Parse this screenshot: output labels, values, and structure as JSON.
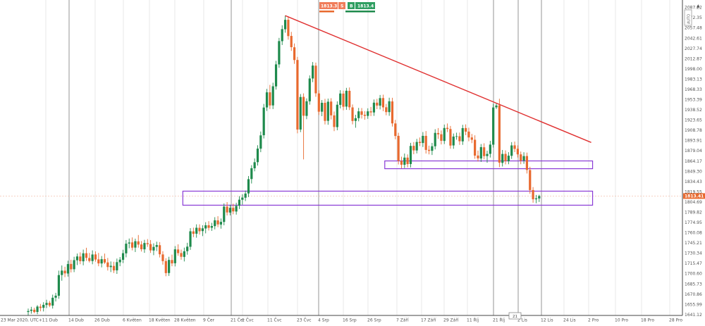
{
  "trade_panel": {
    "sell_price": "1813.3",
    "sell_label": "S",
    "buy_label": "B",
    "buy_price": "1813.4"
  },
  "current_price_tag": "1813.41",
  "nav_arrow": "▲",
  "scroll_marker": "21",
  "zoom_label": "AUTO",
  "colors": {
    "up": "#1e8a4c",
    "down": "#e8692e",
    "trendline": "#e03131",
    "zone": "#8a3ad6",
    "grid": "#d8d8d8",
    "separator": "#7a7a7a",
    "price_tag_bg": "#e8692e",
    "sell_bg": "#f07c5a",
    "buy_bg": "#2f9e61"
  },
  "chart_data": {
    "type": "candlestick",
    "symbol": "",
    "y_ticks": [
      "2087.22",
      "2072.35",
      "2057.48",
      "2042.61",
      "2027.74",
      "2012.87",
      "1998.00",
      "1983.13",
      "1968.33",
      "1953.39",
      "1938.52",
      "1923.65",
      "1908.78",
      "1893.91",
      "1879.04",
      "1864.17",
      "1849.30",
      "1834.43",
      "1819.55",
      "1804.69",
      "1789.82",
      "1774.95",
      "1760.08",
      "1745.21",
      "1730.34",
      "1715.47",
      "1700.60",
      "1685.73",
      "1670.86",
      "1655.99",
      "1641.12"
    ],
    "ylim": [
      1640,
      2094
    ],
    "x_ticks": [
      "23 Mar 2020, UTC+1",
      "1 Dub",
      "14 Dub",
      "26 Dub",
      "6 Květen",
      "18 Květen",
      "28 Květen",
      "9 Čer",
      "21 Čer",
      "1 Čvc",
      "11 Čvc",
      "23 Čvc",
      "4 Srp",
      "16 Srp",
      "26 Srp",
      "7 Září",
      "17 Září",
      "29 Září",
      "11 Říj",
      "21 Říj",
      "2 Lis",
      "12 Lis",
      "24 Lis",
      "2 Pro",
      "10 Pro",
      "18 Pro",
      "28 Pro"
    ],
    "candles": [
      {
        "o": 1645.0,
        "h": 1650.0,
        "l": 1640.0,
        "c": 1646.4
      },
      {
        "o": 1646.6,
        "h": 1652.5,
        "l": 1642.5,
        "c": 1648.4
      },
      {
        "o": 1648.3,
        "h": 1651.2,
        "l": 1643.2,
        "c": 1645.0
      },
      {
        "o": 1645.1,
        "h": 1655.0,
        "l": 1641.8,
        "c": 1652.9
      },
      {
        "o": 1652.8,
        "h": 1656.7,
        "l": 1646.0,
        "c": 1650.9
      },
      {
        "o": 1651.1,
        "h": 1659.2,
        "l": 1645.8,
        "c": 1655.4
      },
      {
        "o": 1655.2,
        "h": 1662.7,
        "l": 1650.8,
        "c": 1658.2
      },
      {
        "o": 1658.4,
        "h": 1661.1,
        "l": 1652.1,
        "c": 1654.5
      },
      {
        "o": 1654.3,
        "h": 1670.2,
        "l": 1650.0,
        "c": 1665.7
      },
      {
        "o": 1665.8,
        "h": 1672.8,
        "l": 1660.3,
        "c": 1668.7
      },
      {
        "o": 1668.6,
        "h": 1705.1,
        "l": 1664.2,
        "c": 1698.6
      },
      {
        "o": 1698.7,
        "h": 1712.6,
        "l": 1690.4,
        "c": 1705.1
      },
      {
        "o": 1705.0,
        "h": 1710.7,
        "l": 1695.6,
        "c": 1701.1
      },
      {
        "o": 1700.9,
        "h": 1719.5,
        "l": 1696.4,
        "c": 1714.6
      },
      {
        "o": 1714.8,
        "h": 1720.9,
        "l": 1702.4,
        "c": 1707.0
      },
      {
        "o": 1707.1,
        "h": 1725.2,
        "l": 1702.9,
        "c": 1720.3
      },
      {
        "o": 1720.1,
        "h": 1729.9,
        "l": 1713.1,
        "c": 1725.7
      },
      {
        "o": 1725.6,
        "h": 1731.6,
        "l": 1714.4,
        "c": 1718.8
      },
      {
        "o": 1718.6,
        "h": 1735.6,
        "l": 1712.8,
        "c": 1730.2
      },
      {
        "o": 1730.4,
        "h": 1738.3,
        "l": 1719.3,
        "c": 1723.6
      },
      {
        "o": 1723.4,
        "h": 1730.8,
        "l": 1716.9,
        "c": 1719.1
      },
      {
        "o": 1719.0,
        "h": 1734.5,
        "l": 1714.3,
        "c": 1728.5
      },
      {
        "o": 1728.6,
        "h": 1733.1,
        "l": 1718.1,
        "c": 1721.2
      },
      {
        "o": 1721.4,
        "h": 1730.8,
        "l": 1711.4,
        "c": 1715.6
      },
      {
        "o": 1715.5,
        "h": 1726.3,
        "l": 1709.8,
        "c": 1721.7
      },
      {
        "o": 1721.8,
        "h": 1729.8,
        "l": 1714.8,
        "c": 1716.8
      },
      {
        "o": 1717.0,
        "h": 1723.5,
        "l": 1705.2,
        "c": 1710.3
      },
      {
        "o": 1710.2,
        "h": 1718.4,
        "l": 1703.0,
        "c": 1712.1
      },
      {
        "o": 1711.9,
        "h": 1718.0,
        "l": 1701.6,
        "c": 1705.4
      },
      {
        "o": 1705.5,
        "h": 1722.6,
        "l": 1700.3,
        "c": 1717.4
      },
      {
        "o": 1717.2,
        "h": 1724.8,
        "l": 1711.5,
        "c": 1721.0
      },
      {
        "o": 1720.8,
        "h": 1735.4,
        "l": 1716.0,
        "c": 1730.4
      },
      {
        "o": 1730.2,
        "h": 1749.5,
        "l": 1724.4,
        "c": 1744.2
      },
      {
        "o": 1744.4,
        "h": 1751.7,
        "l": 1737.6,
        "c": 1745.9
      },
      {
        "o": 1746.1,
        "h": 1753.3,
        "l": 1734.5,
        "c": 1738.4
      },
      {
        "o": 1738.5,
        "h": 1751.5,
        "l": 1732.1,
        "c": 1747.8
      },
      {
        "o": 1747.6,
        "h": 1756.8,
        "l": 1738.4,
        "c": 1742.9
      },
      {
        "o": 1743.1,
        "h": 1748.0,
        "l": 1732.8,
        "c": 1736.1
      },
      {
        "o": 1736.0,
        "h": 1749.8,
        "l": 1730.9,
        "c": 1745.2
      },
      {
        "o": 1745.0,
        "h": 1750.9,
        "l": 1739.6,
        "c": 1743.5
      },
      {
        "o": 1743.6,
        "h": 1749.5,
        "l": 1730.8,
        "c": 1734.5
      },
      {
        "o": 1734.3,
        "h": 1744.7,
        "l": 1727.5,
        "c": 1739.5
      },
      {
        "o": 1739.6,
        "h": 1747.1,
        "l": 1733.5,
        "c": 1742.2
      },
      {
        "o": 1742.0,
        "h": 1746.5,
        "l": 1724.2,
        "c": 1728.8
      },
      {
        "o": 1728.6,
        "h": 1733.3,
        "l": 1713.7,
        "c": 1718.9
      },
      {
        "o": 1719.0,
        "h": 1723.1,
        "l": 1696.9,
        "c": 1701.5
      },
      {
        "o": 1701.6,
        "h": 1725.2,
        "l": 1697.4,
        "c": 1720.6
      },
      {
        "o": 1720.5,
        "h": 1728.3,
        "l": 1711.4,
        "c": 1715.6
      },
      {
        "o": 1715.8,
        "h": 1740.7,
        "l": 1711.2,
        "c": 1736.0
      },
      {
        "o": 1735.8,
        "h": 1743.3,
        "l": 1726.6,
        "c": 1730.5
      },
      {
        "o": 1730.6,
        "h": 1735.6,
        "l": 1720.9,
        "c": 1725.2
      },
      {
        "o": 1725.0,
        "h": 1738.5,
        "l": 1718.4,
        "c": 1733.2
      },
      {
        "o": 1733.4,
        "h": 1745.5,
        "l": 1728.2,
        "c": 1739.9
      },
      {
        "o": 1739.7,
        "h": 1766.8,
        "l": 1735.2,
        "c": 1762.2
      },
      {
        "o": 1762.1,
        "h": 1767.5,
        "l": 1753.7,
        "c": 1758.5
      },
      {
        "o": 1758.7,
        "h": 1772.3,
        "l": 1752.9,
        "c": 1767.3
      },
      {
        "o": 1767.2,
        "h": 1772.3,
        "l": 1757.5,
        "c": 1762.3
      },
      {
        "o": 1762.5,
        "h": 1771.0,
        "l": 1755.2,
        "c": 1766.5
      },
      {
        "o": 1766.3,
        "h": 1775.4,
        "l": 1759.2,
        "c": 1770.9
      },
      {
        "o": 1771.0,
        "h": 1776.9,
        "l": 1763.3,
        "c": 1767.2
      },
      {
        "o": 1767.4,
        "h": 1774.5,
        "l": 1762.8,
        "c": 1769.8
      },
      {
        "o": 1769.7,
        "h": 1782.7,
        "l": 1765.0,
        "c": 1778.2
      },
      {
        "o": 1778.0,
        "h": 1784.1,
        "l": 1768.2,
        "c": 1772.2
      },
      {
        "o": 1772.0,
        "h": 1780.8,
        "l": 1766.0,
        "c": 1775.9
      },
      {
        "o": 1775.8,
        "h": 1802.7,
        "l": 1770.9,
        "c": 1798.1
      },
      {
        "o": 1798.1,
        "h": 1804.6,
        "l": 1785.2,
        "c": 1789.6
      },
      {
        "o": 1789.4,
        "h": 1800.8,
        "l": 1785.3,
        "c": 1796.3
      },
      {
        "o": 1796.2,
        "h": 1802.3,
        "l": 1786.9,
        "c": 1791.1
      },
      {
        "o": 1790.9,
        "h": 1803.7,
        "l": 1786.4,
        "c": 1799.1
      },
      {
        "o": 1799.3,
        "h": 1813.2,
        "l": 1794.5,
        "c": 1808.1
      },
      {
        "o": 1808.0,
        "h": 1816.0,
        "l": 1800.8,
        "c": 1811.2
      },
      {
        "o": 1811.0,
        "h": 1821.4,
        "l": 1806.1,
        "c": 1817.0
      },
      {
        "o": 1817.2,
        "h": 1842.5,
        "l": 1811.9,
        "c": 1837.9
      },
      {
        "o": 1838.1,
        "h": 1858.2,
        "l": 1831.6,
        "c": 1853.8
      },
      {
        "o": 1853.7,
        "h": 1868.0,
        "l": 1849.3,
        "c": 1862.5
      },
      {
        "o": 1862.6,
        "h": 1887.2,
        "l": 1857.7,
        "c": 1882.3
      },
      {
        "o": 1882.2,
        "h": 1907.1,
        "l": 1877.1,
        "c": 1901.5
      },
      {
        "o": 1901.7,
        "h": 1947.2,
        "l": 1897.0,
        "c": 1941.9
      },
      {
        "o": 1942.1,
        "h": 1969.0,
        "l": 1936.9,
        "c": 1964.0
      },
      {
        "o": 1964.0,
        "h": 1974.8,
        "l": 1939.8,
        "c": 1945.0
      },
      {
        "o": 1945.0,
        "h": 1978.0,
        "l": 1939.7,
        "c": 1972.8
      },
      {
        "o": 1972.6,
        "h": 2009.8,
        "l": 1968.0,
        "c": 2004.6
      },
      {
        "o": 2004.6,
        "h": 2043.1,
        "l": 1999.6,
        "c": 2038.4
      },
      {
        "o": 2038.3,
        "h": 2061.4,
        "l": 2032.7,
        "c": 2055.8
      },
      {
        "o": 2055.6,
        "h": 2075.5,
        "l": 2050.6,
        "c": 2069.3
      },
      {
        "o": 2069.4,
        "h": 2074.3,
        "l": 2040.5,
        "c": 2045.7
      },
      {
        "o": 2045.9,
        "h": 2051.8,
        "l": 2024.2,
        "c": 2029.6
      },
      {
        "o": 2029.4,
        "h": 2035.0,
        "l": 2005.4,
        "c": 2010.9
      },
      {
        "o": 2011.0,
        "h": 2015.5,
        "l": 1904.5,
        "c": 1910.0
      },
      {
        "o": 1910.0,
        "h": 1961.5,
        "l": 1906.2,
        "c": 1957.2
      },
      {
        "o": 1957.4,
        "h": 1962.5,
        "l": 1866.6,
        "c": 1930.0
      },
      {
        "o": 1929.8,
        "h": 1955.2,
        "l": 1925.0,
        "c": 1951.0
      },
      {
        "o": 1951.0,
        "h": 1988.6,
        "l": 1946.1,
        "c": 1984.1
      },
      {
        "o": 1984.1,
        "h": 2008.0,
        "l": 1978.8,
        "c": 2002.9
      },
      {
        "o": 2002.7,
        "h": 2007.2,
        "l": 1957.5,
        "c": 1962.6
      },
      {
        "o": 1962.4,
        "h": 1966.9,
        "l": 1931.1,
        "c": 1935.9
      },
      {
        "o": 1935.9,
        "h": 1952.8,
        "l": 1929.4,
        "c": 1948.8
      },
      {
        "o": 1948.8,
        "h": 1954.6,
        "l": 1917.3,
        "c": 1922.5
      },
      {
        "o": 1922.6,
        "h": 1954.9,
        "l": 1916.9,
        "c": 1950.4
      },
      {
        "o": 1950.6,
        "h": 1955.5,
        "l": 1924.6,
        "c": 1930.6
      },
      {
        "o": 1930.5,
        "h": 1936.2,
        "l": 1907.7,
        "c": 1913.7
      },
      {
        "o": 1913.5,
        "h": 1950.9,
        "l": 1908.9,
        "c": 1946.0
      },
      {
        "o": 1945.8,
        "h": 1967.1,
        "l": 1940.6,
        "c": 1962.3
      },
      {
        "o": 1962.2,
        "h": 1966.5,
        "l": 1938.0,
        "c": 1943.1
      },
      {
        "o": 1943.3,
        "h": 1970.5,
        "l": 1938.6,
        "c": 1966.3
      },
      {
        "o": 1966.2,
        "h": 1971.1,
        "l": 1938.3,
        "c": 1942.3
      },
      {
        "o": 1942.1,
        "h": 1946.4,
        "l": 1917.5,
        "c": 1922.4
      },
      {
        "o": 1922.5,
        "h": 1931.4,
        "l": 1912.6,
        "c": 1926.4
      },
      {
        "o": 1926.5,
        "h": 1941.4,
        "l": 1921.9,
        "c": 1936.4
      },
      {
        "o": 1936.4,
        "h": 1941.2,
        "l": 1925.9,
        "c": 1931.4
      },
      {
        "o": 1931.4,
        "h": 1936.7,
        "l": 1924.2,
        "c": 1929.9
      },
      {
        "o": 1929.8,
        "h": 1940.8,
        "l": 1925.5,
        "c": 1936.4
      },
      {
        "o": 1936.4,
        "h": 1942.8,
        "l": 1929.5,
        "c": 1934.9
      },
      {
        "o": 1934.8,
        "h": 1953.6,
        "l": 1929.8,
        "c": 1949.0
      },
      {
        "o": 1949.0,
        "h": 1954.5,
        "l": 1939.6,
        "c": 1944.8
      },
      {
        "o": 1944.7,
        "h": 1960.2,
        "l": 1939.2,
        "c": 1955.6
      },
      {
        "o": 1955.7,
        "h": 1960.6,
        "l": 1936.6,
        "c": 1942.2
      },
      {
        "o": 1942.3,
        "h": 1947.2,
        "l": 1930.7,
        "c": 1935.3
      },
      {
        "o": 1935.3,
        "h": 1956.2,
        "l": 1929.9,
        "c": 1951.0
      },
      {
        "o": 1950.8,
        "h": 1956.1,
        "l": 1914.3,
        "c": 1918.9
      },
      {
        "o": 1918.8,
        "h": 1924.0,
        "l": 1895.8,
        "c": 1900.6
      },
      {
        "o": 1900.8,
        "h": 1905.3,
        "l": 1859.3,
        "c": 1864.6
      },
      {
        "o": 1864.5,
        "h": 1870.6,
        "l": 1853.4,
        "c": 1858.9
      },
      {
        "o": 1858.8,
        "h": 1875.1,
        "l": 1854.0,
        "c": 1869.2
      },
      {
        "o": 1869.2,
        "h": 1873.9,
        "l": 1855.0,
        "c": 1859.8
      },
      {
        "o": 1859.9,
        "h": 1890.7,
        "l": 1854.8,
        "c": 1886.2
      },
      {
        "o": 1886.3,
        "h": 1891.8,
        "l": 1874.1,
        "c": 1879.7
      },
      {
        "o": 1879.6,
        "h": 1896.4,
        "l": 1875.3,
        "c": 1891.9
      },
      {
        "o": 1892.1,
        "h": 1898.5,
        "l": 1885.9,
        "c": 1890.5
      },
      {
        "o": 1890.4,
        "h": 1906.3,
        "l": 1884.6,
        "c": 1900.8
      },
      {
        "o": 1900.8,
        "h": 1907.8,
        "l": 1875.1,
        "c": 1880.4
      },
      {
        "o": 1880.5,
        "h": 1886.6,
        "l": 1873.9,
        "c": 1879.0
      },
      {
        "o": 1879.1,
        "h": 1890.6,
        "l": 1873.0,
        "c": 1885.7
      },
      {
        "o": 1885.7,
        "h": 1910.4,
        "l": 1881.1,
        "c": 1905.1
      },
      {
        "o": 1904.9,
        "h": 1912.1,
        "l": 1896.4,
        "c": 1903.0
      },
      {
        "o": 1903.1,
        "h": 1908.6,
        "l": 1888.3,
        "c": 1893.6
      },
      {
        "o": 1893.4,
        "h": 1917.2,
        "l": 1888.9,
        "c": 1912.2
      },
      {
        "o": 1912.4,
        "h": 1918.8,
        "l": 1906.3,
        "c": 1910.8
      },
      {
        "o": 1910.7,
        "h": 1915.2,
        "l": 1882.1,
        "c": 1886.7
      },
      {
        "o": 1886.9,
        "h": 1904.2,
        "l": 1882.0,
        "c": 1899.8
      },
      {
        "o": 1899.6,
        "h": 1905.4,
        "l": 1895.2,
        "c": 1900.2
      },
      {
        "o": 1900.2,
        "h": 1905.6,
        "l": 1887.7,
        "c": 1893.0
      },
      {
        "o": 1892.8,
        "h": 1916.8,
        "l": 1887.7,
        "c": 1912.0
      },
      {
        "o": 1912.1,
        "h": 1917.5,
        "l": 1901.8,
        "c": 1906.9
      },
      {
        "o": 1907.0,
        "h": 1912.6,
        "l": 1892.9,
        "c": 1898.5
      },
      {
        "o": 1898.5,
        "h": 1903.6,
        "l": 1890.2,
        "c": 1895.1
      },
      {
        "o": 1895.1,
        "h": 1901.6,
        "l": 1867.5,
        "c": 1872.1
      },
      {
        "o": 1872.2,
        "h": 1879.4,
        "l": 1863.5,
        "c": 1868.1
      },
      {
        "o": 1867.9,
        "h": 1888.9,
        "l": 1862.9,
        "c": 1884.4
      },
      {
        "o": 1884.2,
        "h": 1890.0,
        "l": 1866.8,
        "c": 1871.4
      },
      {
        "o": 1871.5,
        "h": 1879.2,
        "l": 1861.8,
        "c": 1874.5
      },
      {
        "o": 1874.7,
        "h": 1893.6,
        "l": 1869.3,
        "c": 1888.1
      },
      {
        "o": 1888.0,
        "h": 1947.4,
        "l": 1883.8,
        "c": 1942.0
      },
      {
        "o": 1942.2,
        "h": 1948.0,
        "l": 1939.7,
        "c": 1944.9
      },
      {
        "o": 1945.1,
        "h": 1954.7,
        "l": 1855.4,
        "c": 1861.8
      },
      {
        "o": 1861.6,
        "h": 1880.3,
        "l": 1856.3,
        "c": 1874.5
      },
      {
        "o": 1874.6,
        "h": 1879.6,
        "l": 1859.3,
        "c": 1864.2
      },
      {
        "o": 1864.0,
        "h": 1877.1,
        "l": 1859.6,
        "c": 1872.0
      },
      {
        "o": 1871.8,
        "h": 1891.7,
        "l": 1867.3,
        "c": 1886.9
      },
      {
        "o": 1887.0,
        "h": 1892.5,
        "l": 1877.2,
        "c": 1881.9
      },
      {
        "o": 1882.0,
        "h": 1887.0,
        "l": 1869.4,
        "c": 1873.9
      },
      {
        "o": 1873.9,
        "h": 1878.0,
        "l": 1859.6,
        "c": 1864.7
      },
      {
        "o": 1864.9,
        "h": 1877.0,
        "l": 1860.2,
        "c": 1871.4
      },
      {
        "o": 1871.5,
        "h": 1876.5,
        "l": 1846.1,
        "c": 1851.3
      },
      {
        "o": 1851.1,
        "h": 1855.9,
        "l": 1816.7,
        "c": 1822.1
      },
      {
        "o": 1822.1,
        "h": 1826.4,
        "l": 1803.7,
        "c": 1808.7
      },
      {
        "o": 1808.7,
        "h": 1815.0,
        "l": 1802.9,
        "c": 1810.0
      },
      {
        "o": 1809.9,
        "h": 1815.3,
        "l": 1804.8,
        "c": 1813.4
      }
    ],
    "trendline": {
      "from": {
        "candle": 84,
        "price": 2075.4
      },
      "to": {
        "candle": 184,
        "price": 1891.2
      }
    },
    "zones": [
      {
        "from_candle": 117,
        "to_candle": 184,
        "high": 1864.4,
        "low": 1853.1
      },
      {
        "from_candle": 51,
        "to_candle": 184,
        "high": 1820.5,
        "low": 1800.1
      }
    ],
    "current_price": 1813.41,
    "grid": true
  }
}
